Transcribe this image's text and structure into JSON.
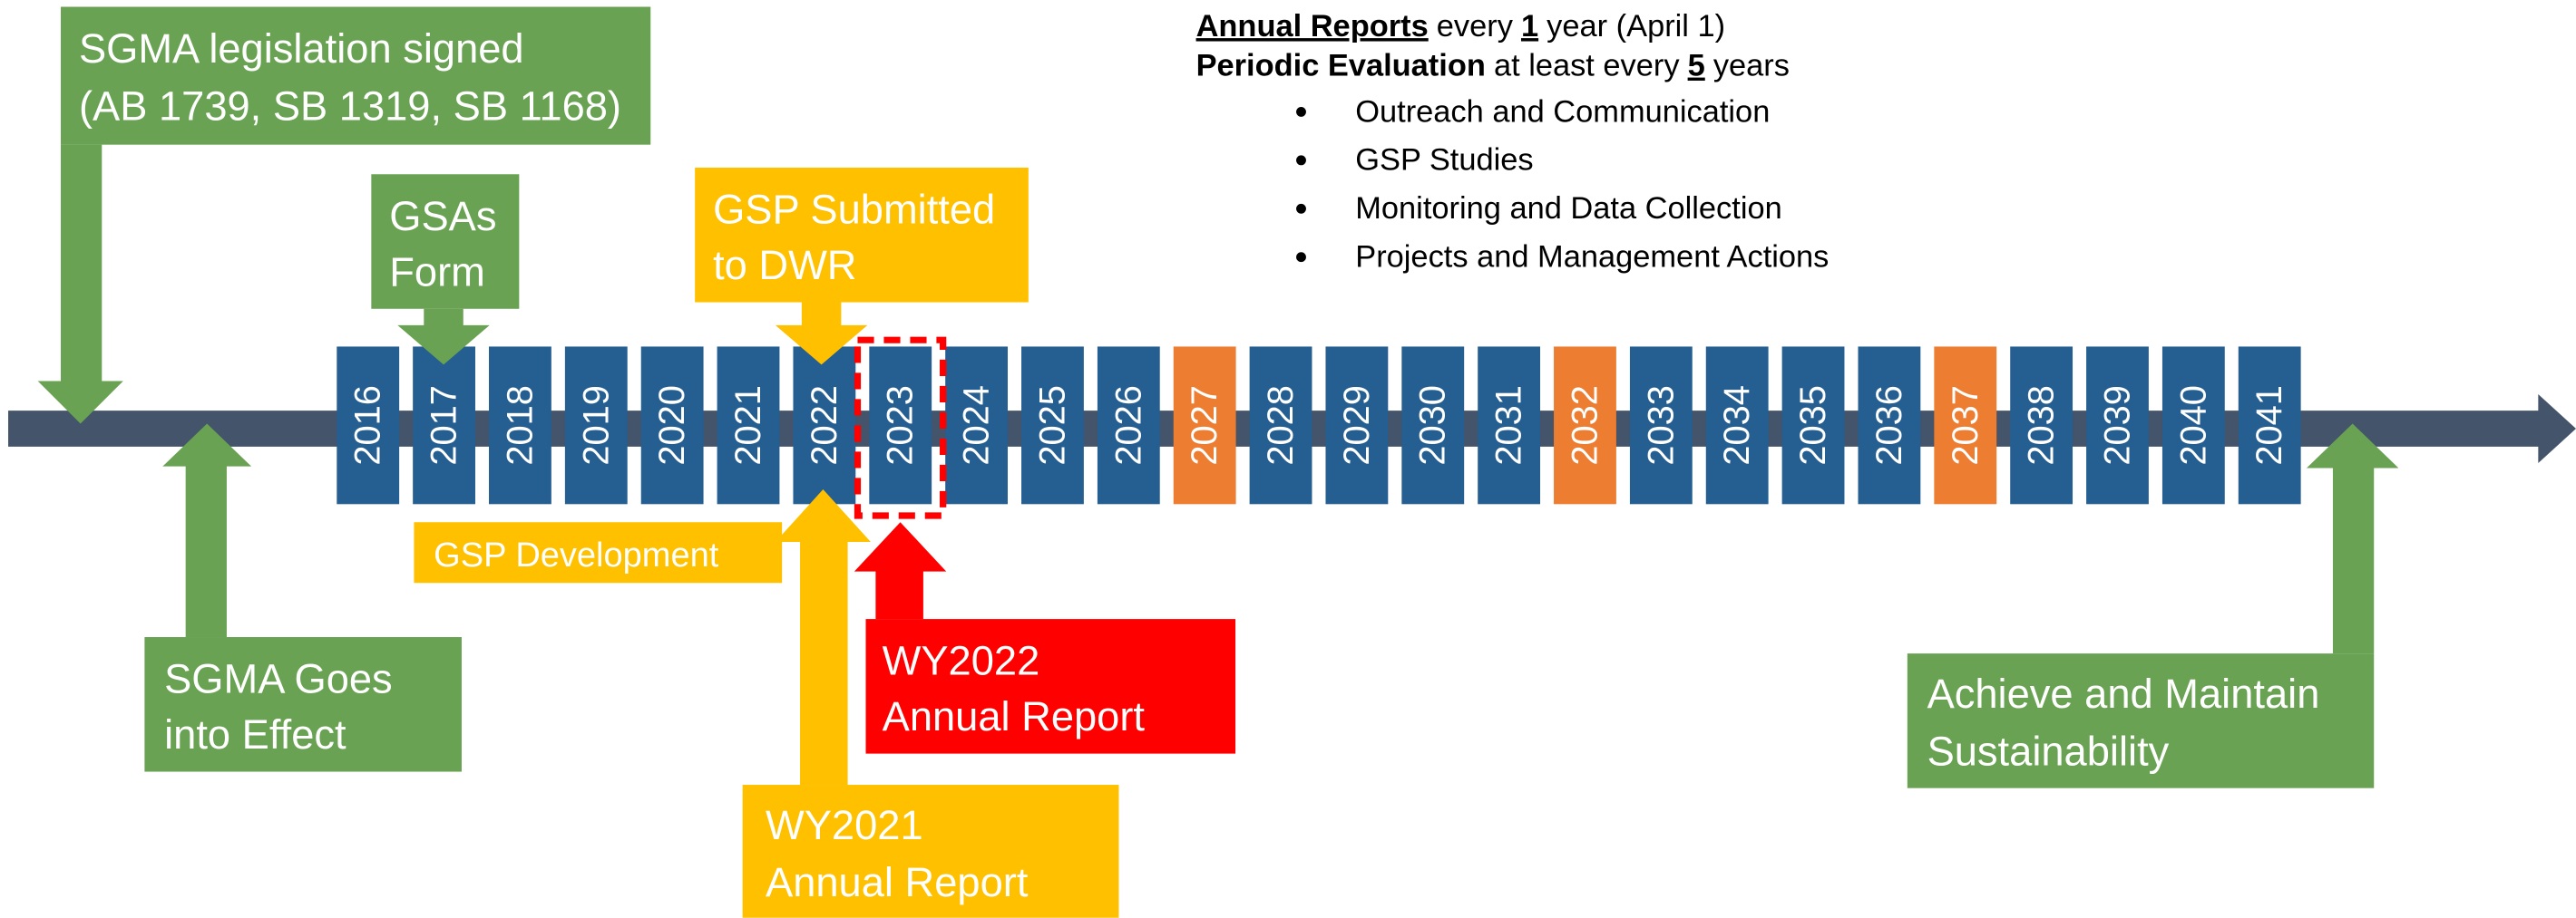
{
  "callouts": {
    "legislation": [
      "SGMA legislation signed",
      "(AB 1739, SB 1319, SB 1168)"
    ],
    "gsas": [
      "GSAs",
      "Form"
    ],
    "gsp_submitted": [
      "GSP Submitted",
      "to DWR"
    ],
    "sgma_effect": [
      "SGMA Goes",
      "into Effect"
    ],
    "gsp_development": "GSP Development",
    "wy2021": [
      "WY2021",
      "Annual Report"
    ],
    "wy2022": [
      "WY2022",
      "Annual Report"
    ],
    "sustainability": [
      "Achieve and Maintain",
      "Sustainability"
    ]
  },
  "notes": {
    "annual": [
      "Annual Reports",
      "every",
      "1",
      "year (April 1)"
    ],
    "periodic": [
      "Periodic Evaluation",
      "at least every",
      "5",
      "years"
    ],
    "bullets": [
      "Outreach and Communication",
      "GSP Studies",
      "Monitoring and Data Collection",
      "Projects and Management Actions"
    ]
  },
  "years": [
    {
      "label": "2016",
      "color": "#255e91"
    },
    {
      "label": "2017",
      "color": "#255e91"
    },
    {
      "label": "2018",
      "color": "#255e91"
    },
    {
      "label": "2019",
      "color": "#255e91"
    },
    {
      "label": "2020",
      "color": "#255e91"
    },
    {
      "label": "2021",
      "color": "#255e91"
    },
    {
      "label": "2022",
      "color": "#255e91"
    },
    {
      "label": "2023",
      "color": "#255e91"
    },
    {
      "label": "2024",
      "color": "#255e91"
    },
    {
      "label": "2025",
      "color": "#255e91"
    },
    {
      "label": "2026",
      "color": "#255e91"
    },
    {
      "label": "2027",
      "color": "#ed7d31"
    },
    {
      "label": "2028",
      "color": "#255e91"
    },
    {
      "label": "2029",
      "color": "#255e91"
    },
    {
      "label": "2030",
      "color": "#255e91"
    },
    {
      "label": "2031",
      "color": "#255e91"
    },
    {
      "label": "2032",
      "color": "#ed7d31"
    },
    {
      "label": "2033",
      "color": "#255e91"
    },
    {
      "label": "2034",
      "color": "#255e91"
    },
    {
      "label": "2035",
      "color": "#255e91"
    },
    {
      "label": "2036",
      "color": "#255e91"
    },
    {
      "label": "2037",
      "color": "#ed7d31"
    },
    {
      "label": "2038",
      "color": "#255e91"
    },
    {
      "label": "2039",
      "color": "#255e91"
    },
    {
      "label": "2040",
      "color": "#255e91"
    },
    {
      "label": "2041",
      "color": "#255e91"
    }
  ]
}
